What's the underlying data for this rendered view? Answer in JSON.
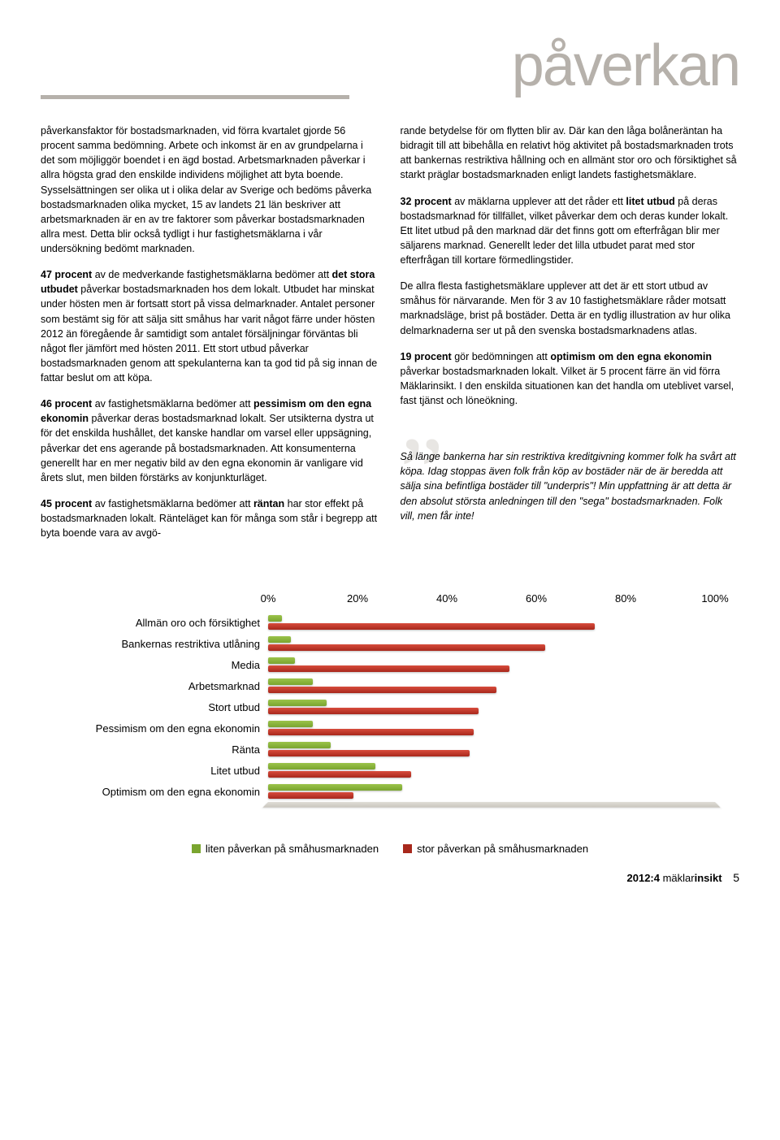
{
  "header": {
    "title": "påverkan"
  },
  "left_col": {
    "p1_a": "påverkansfaktor för bostadsmarknaden, vid förra kvartalet gjorde 56 procent samma bedömning. Arbete och inkomst är en av grundpelarna i det som möjliggör boendet i en ägd bostad. Arbetsmarknaden påverkar i allra högsta grad den enskilde individens möjlighet att byta boende. Sysselsättningen ser olika ut i olika delar av Sverige och bedöms påverka bostadsmarknaden olika mycket, 15 av landets 21 län beskriver att arbetsmarknaden är en av tre faktorer som påverkar bostadsmarknaden allra mest. Detta blir också tydligt i hur fastighetsmäklarna i vår undersökning bedömt marknaden.",
    "p2_b1": "47 procent",
    "p2_a": " av de medverkande fastighetsmäklarna bedömer att ",
    "p2_b2": "det stora utbudet",
    "p2_c": " påverkar bostadsmarknaden hos dem lokalt. Utbudet har minskat under hösten men är fortsatt stort på vissa delmarknader. Antalet personer som bestämt sig för att sälja sitt småhus har varit något färre under hösten 2012 än föregående år samtidigt som antalet försäljningar förväntas bli något fler jämfört med hösten 2011. Ett stort utbud påverkar bostadsmarknaden genom att spekulanterna kan ta god tid på sig innan de fattar beslut om att köpa.",
    "p3_b1": "46 procent",
    "p3_a": " av fastighetsmäklarna bedömer att ",
    "p3_b2": "pessimism om den egna ekonomin",
    "p3_c": " påverkar deras bostadsmarknad lokalt. Ser utsikterna dystra ut för det enskilda hushållet, det kanske handlar om varsel eller uppsägning, påverkar det ens agerande på bostadsmarknaden. Att konsumenterna generellt har en mer negativ bild av den egna ekonomin är vanligare vid årets slut, men bilden förstärks av konjunkturläget.",
    "p4_b1": "45 procent",
    "p4_a": " av fastighetsmäklarna bedömer att ",
    "p4_b2": "räntan",
    "p4_c": " har stor effekt på bostadsmarknaden lokalt. Ränteläget kan för många som står i begrepp att byta boende vara av avgö-"
  },
  "right_col": {
    "p1_a": "rande betydelse för om flytten blir av. Där kan den låga bolåneräntan ha bidragit till att bibehålla en relativt hög aktivitet på bostadsmarknaden trots att bankernas restriktiva hållning och en allmänt stor oro och försiktighet så starkt präglar bostadsmarknaden enligt landets fastighetsmäklare.",
    "p2_b1": "32 procent",
    "p2_a": " av mäklarna upplever att det råder ett ",
    "p2_b2": "litet utbud",
    "p2_c": " på deras bostadsmarknad för tillfället, vilket påverkar dem och deras kunder lokalt. Ett litet utbud på den marknad där det finns gott om efterfrågan blir mer säljarens marknad. Generellt leder det lilla utbudet parat med stor efterfrågan till kortare förmedlingstider.",
    "p3_a": "De allra flesta fastighetsmäklare upplever att det är ett stort utbud av småhus för närvarande. Men för 3 av 10 fastighetsmäklare råder motsatt marknadsläge, brist på bostäder. Detta är en tydlig illustration av hur olika delmarknaderna ser ut på den svenska bostadsmarknadens atlas.",
    "p4_b1": "19 procent",
    "p4_a": " gör bedömningen att ",
    "p4_b2": "optimism om den egna ekonomin",
    "p4_c": " påverkar bostadsmarknaden lokalt. Vilket är 5 procent färre än vid förra Mäklarinsikt. I den enskilda situationen kan det handla om uteblivet varsel, fast tjänst och löneökning.",
    "quote": "Så länge bankerna har sin restriktiva kreditgivning kommer folk ha svårt att köpa. Idag stoppas även folk från köp av bostäder när de är beredda att sälja sina befintliga bostäder till \"underpris\"! Min uppfattning är att detta är den absolut största anledningen till den \"sega\" bostadsmarknaden. Folk vill, men får inte!"
  },
  "chart": {
    "type": "bar",
    "xlim": [
      0,
      100
    ],
    "ticks": [
      0,
      20,
      40,
      60,
      80,
      100
    ],
    "tick_labels": [
      "0%",
      "20%",
      "40%",
      "60%",
      "80%",
      "100%"
    ],
    "categories": [
      "Allmän oro och försiktighet",
      "Bankernas restriktiva utlåning",
      "Media",
      "Arbetsmarknad",
      "Stort utbud",
      "Pessimism om den egna ekonomin",
      "Ränta",
      "Litet utbud",
      "Optimism om den egna ekonomin"
    ],
    "green_values": [
      3,
      5,
      6,
      10,
      13,
      10,
      14,
      24,
      30
    ],
    "red_values": [
      73,
      62,
      54,
      51,
      47,
      46,
      45,
      32,
      19
    ],
    "colors": {
      "green": "#7aa52f",
      "red": "#a8281c",
      "base": "#d6d2ca"
    }
  },
  "legend": {
    "green": "liten påverkan på småhusmarknaden",
    "red": "stor påverkan på småhusmarknaden"
  },
  "footer": {
    "issue": "2012:4 ",
    "brand_a": "mäklar",
    "brand_b": "insikt",
    "page": "5"
  }
}
